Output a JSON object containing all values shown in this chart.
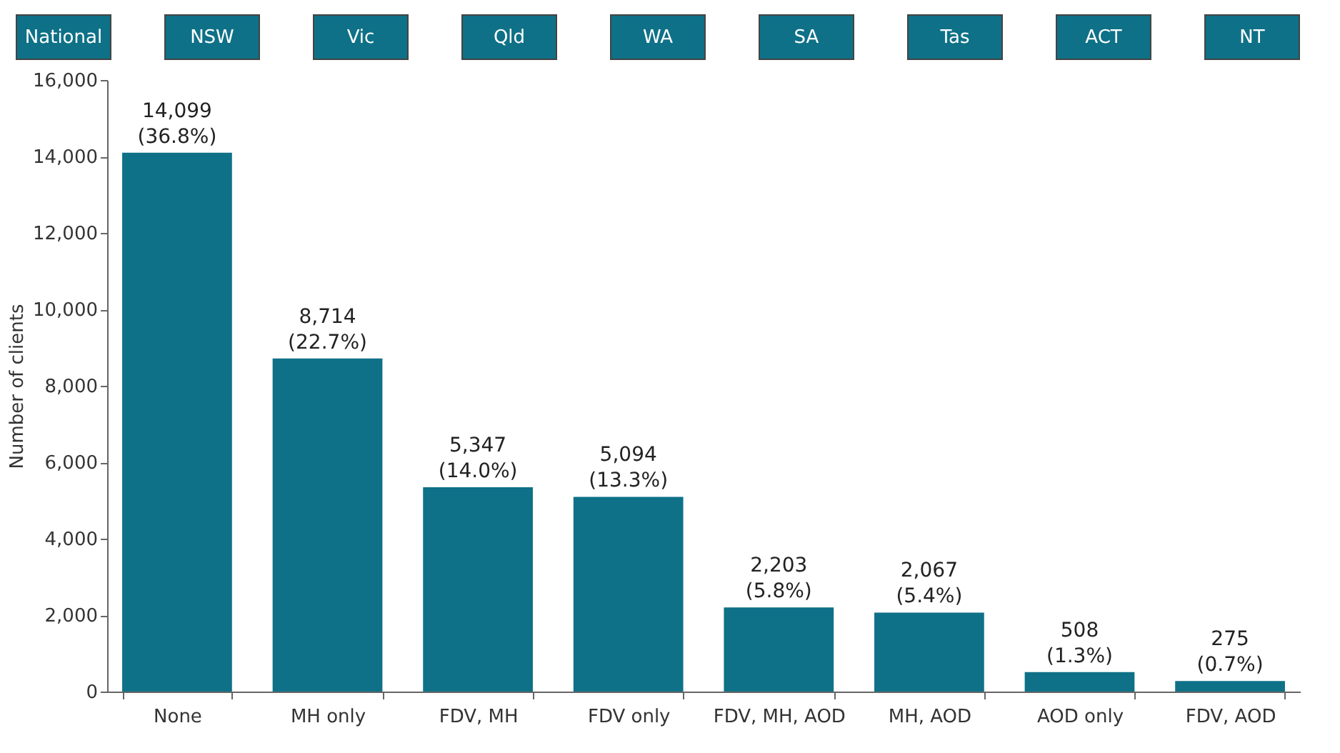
{
  "chart_data": {
    "type": "bar",
    "ylabel": "Number of clients",
    "categories": [
      "None",
      "MH only",
      "FDV, MH",
      "FDV only",
      "FDV, MH, AOD",
      "MH, AOD",
      "AOD only",
      "FDV, AOD"
    ],
    "values": [
      14099,
      8714,
      5347,
      5094,
      2203,
      2067,
      508,
      275
    ],
    "value_labels": [
      "14,099\n(36.8%)",
      "8,714\n(22.7%)",
      "5,347\n(14.0%)",
      "5,094\n(13.3%)",
      "2,203\n(5.8%)",
      "2,067\n(5.4%)",
      "508\n(1.3%)",
      "275\n(0.7%)"
    ],
    "color": "#0e7187",
    "ylim": [
      0,
      16000
    ],
    "yticks": [
      0,
      {
        "value": 2000,
        "label": "2,000"
      },
      {
        "value": 4000,
        "label": "4,000"
      },
      {
        "value": 6000,
        "label": "6,000"
      },
      {
        "value": 8000,
        "label": "8,000"
      },
      {
        "value": 10000,
        "label": "10,000"
      },
      {
        "value": 12000,
        "label": "12,000"
      },
      {
        "value": 14000,
        "label": "14,000"
      },
      {
        "value": 16000,
        "label": "16,000"
      }
    ],
    "grid": false,
    "annotations": [
      "National",
      "NSW",
      "Vic",
      "Qld",
      "WA",
      "SA",
      "Tas",
      "ACT",
      "NT"
    ]
  }
}
